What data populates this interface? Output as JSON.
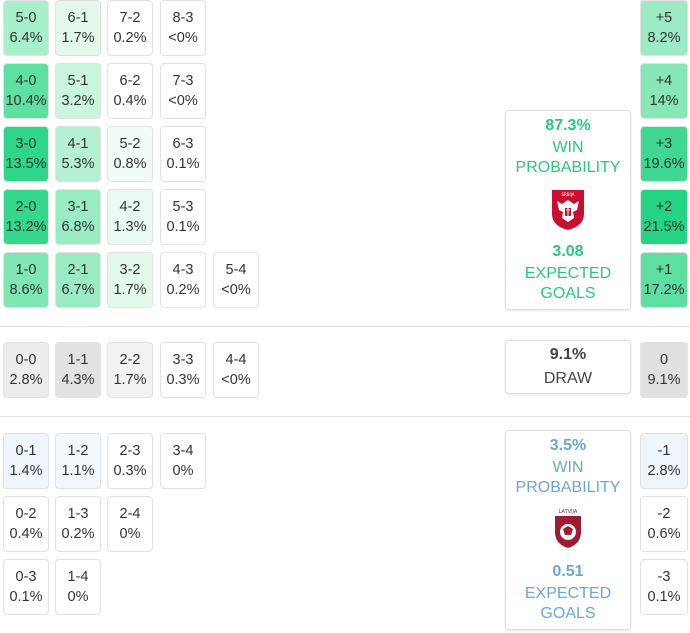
{
  "home_scores": [
    {
      "score": "5-0",
      "pct": "6.4%",
      "col": 0,
      "row": 0,
      "bg": "#a8efcc"
    },
    {
      "score": "6-1",
      "pct": "1.7%",
      "col": 1,
      "row": 0,
      "bg": "#e3f9ee"
    },
    {
      "score": "7-2",
      "pct": "0.2%",
      "col": 2,
      "row": 0,
      "bg": "#ffffff"
    },
    {
      "score": "8-3",
      "pct": "<0%",
      "col": 3,
      "row": 0,
      "bg": "#ffffff"
    },
    {
      "score": "4-0",
      "pct": "10.4%",
      "col": 0,
      "row": 1,
      "bg": "#5fe0a3"
    },
    {
      "score": "5-1",
      "pct": "3.2%",
      "col": 1,
      "row": 1,
      "bg": "#c9f5df"
    },
    {
      "score": "6-2",
      "pct": "0.4%",
      "col": 2,
      "row": 1,
      "bg": "#ffffff"
    },
    {
      "score": "7-3",
      "pct": "<0%",
      "col": 3,
      "row": 1,
      "bg": "#ffffff"
    },
    {
      "score": "3-0",
      "pct": "13.5%",
      "col": 0,
      "row": 2,
      "bg": "#2fd68a"
    },
    {
      "score": "4-1",
      "pct": "5.3%",
      "col": 1,
      "row": 2,
      "bg": "#b3f1d2"
    },
    {
      "score": "5-2",
      "pct": "0.8%",
      "col": 2,
      "row": 2,
      "bg": "#f1fcf6"
    },
    {
      "score": "6-3",
      "pct": "0.1%",
      "col": 3,
      "row": 2,
      "bg": "#ffffff"
    },
    {
      "score": "2-0",
      "pct": "13.2%",
      "col": 0,
      "row": 3,
      "bg": "#34d78c"
    },
    {
      "score": "3-1",
      "pct": "6.8%",
      "col": 1,
      "row": 3,
      "bg": "#98ebc3"
    },
    {
      "score": "4-2",
      "pct": "1.3%",
      "col": 2,
      "row": 3,
      "bg": "#e8faf1"
    },
    {
      "score": "5-3",
      "pct": "0.1%",
      "col": 3,
      "row": 3,
      "bg": "#ffffff"
    },
    {
      "score": "1-0",
      "pct": "8.6%",
      "col": 0,
      "row": 4,
      "bg": "#7ee6b3"
    },
    {
      "score": "2-1",
      "pct": "6.7%",
      "col": 1,
      "row": 4,
      "bg": "#9aebc4"
    },
    {
      "score": "3-2",
      "pct": "1.7%",
      "col": 2,
      "row": 4,
      "bg": "#e3f9ee"
    },
    {
      "score": "4-3",
      "pct": "0.2%",
      "col": 3,
      "row": 4,
      "bg": "#ffffff"
    },
    {
      "score": "5-4",
      "pct": "<0%",
      "col": 4,
      "row": 4,
      "bg": "#ffffff"
    }
  ],
  "draw_scores": [
    {
      "score": "0-0",
      "pct": "2.8%",
      "col": 0,
      "bg": "#ededed"
    },
    {
      "score": "1-1",
      "pct": "4.3%",
      "col": 1,
      "bg": "#e2e2e2"
    },
    {
      "score": "2-2",
      "pct": "1.7%",
      "col": 2,
      "bg": "#f2f2f2"
    },
    {
      "score": "3-3",
      "pct": "0.3%",
      "col": 3,
      "bg": "#ffffff"
    },
    {
      "score": "4-4",
      "pct": "<0%",
      "col": 4,
      "bg": "#ffffff"
    }
  ],
  "away_scores": [
    {
      "score": "0-1",
      "pct": "1.4%",
      "col": 0,
      "row": 0,
      "bg": "#eef5fb"
    },
    {
      "score": "1-2",
      "pct": "1.1%",
      "col": 1,
      "row": 0,
      "bg": "#f2f7fc"
    },
    {
      "score": "2-3",
      "pct": "0.3%",
      "col": 2,
      "row": 0,
      "bg": "#ffffff"
    },
    {
      "score": "3-4",
      "pct": "0%",
      "col": 3,
      "row": 0,
      "bg": "#ffffff"
    },
    {
      "score": "0-2",
      "pct": "0.4%",
      "col": 0,
      "row": 1,
      "bg": "#ffffff"
    },
    {
      "score": "1-3",
      "pct": "0.2%",
      "col": 1,
      "row": 1,
      "bg": "#ffffff"
    },
    {
      "score": "2-4",
      "pct": "0%",
      "col": 2,
      "row": 1,
      "bg": "#ffffff"
    },
    {
      "score": "0-3",
      "pct": "0.1%",
      "col": 0,
      "row": 2,
      "bg": "#ffffff"
    },
    {
      "score": "1-4",
      "pct": "0%",
      "col": 1,
      "row": 2,
      "bg": "#ffffff"
    }
  ],
  "home_margins": [
    {
      "margin": "+5",
      "pct": "8.2%",
      "bg": "#9debc6"
    },
    {
      "margin": "+4",
      "pct": "14%",
      "bg": "#86e7b7"
    },
    {
      "margin": "+3",
      "pct": "19.6%",
      "bg": "#3fd893"
    },
    {
      "margin": "+2",
      "pct": "21.5%",
      "bg": "#25d384"
    },
    {
      "margin": "+1",
      "pct": "17.2%",
      "bg": "#5ddfa2"
    }
  ],
  "draw_margin": {
    "margin": "0",
    "pct": "9.1%",
    "bg": "#e0e0e0"
  },
  "away_margins": [
    {
      "margin": "-1",
      "pct": "2.8%",
      "bg": "#eef5fb"
    },
    {
      "margin": "-2",
      "pct": "0.6%",
      "bg": "#ffffff"
    },
    {
      "margin": "-3",
      "pct": "0.1%",
      "bg": "#ffffff"
    }
  ],
  "home_card": {
    "win_pct": "87.3%",
    "win_label_1": "WIN",
    "win_label_2": "PROBABILITY",
    "crest_text": "SRBIJA",
    "xg": "3.08",
    "xg_label_1": "EXPECTED",
    "xg_label_2": "GOALS",
    "color": "#27c97f"
  },
  "draw_card": {
    "pct": "9.1%",
    "label": "DRAW"
  },
  "away_card": {
    "win_pct": "3.5%",
    "win_label_1": "WIN",
    "win_label_2": "PROBABILITY",
    "crest_text": "LATVIJA",
    "xg": "0.51",
    "xg_label_1": "EXPECTED",
    "xg_label_2": "GOALS",
    "color": "#6ba6d6"
  }
}
